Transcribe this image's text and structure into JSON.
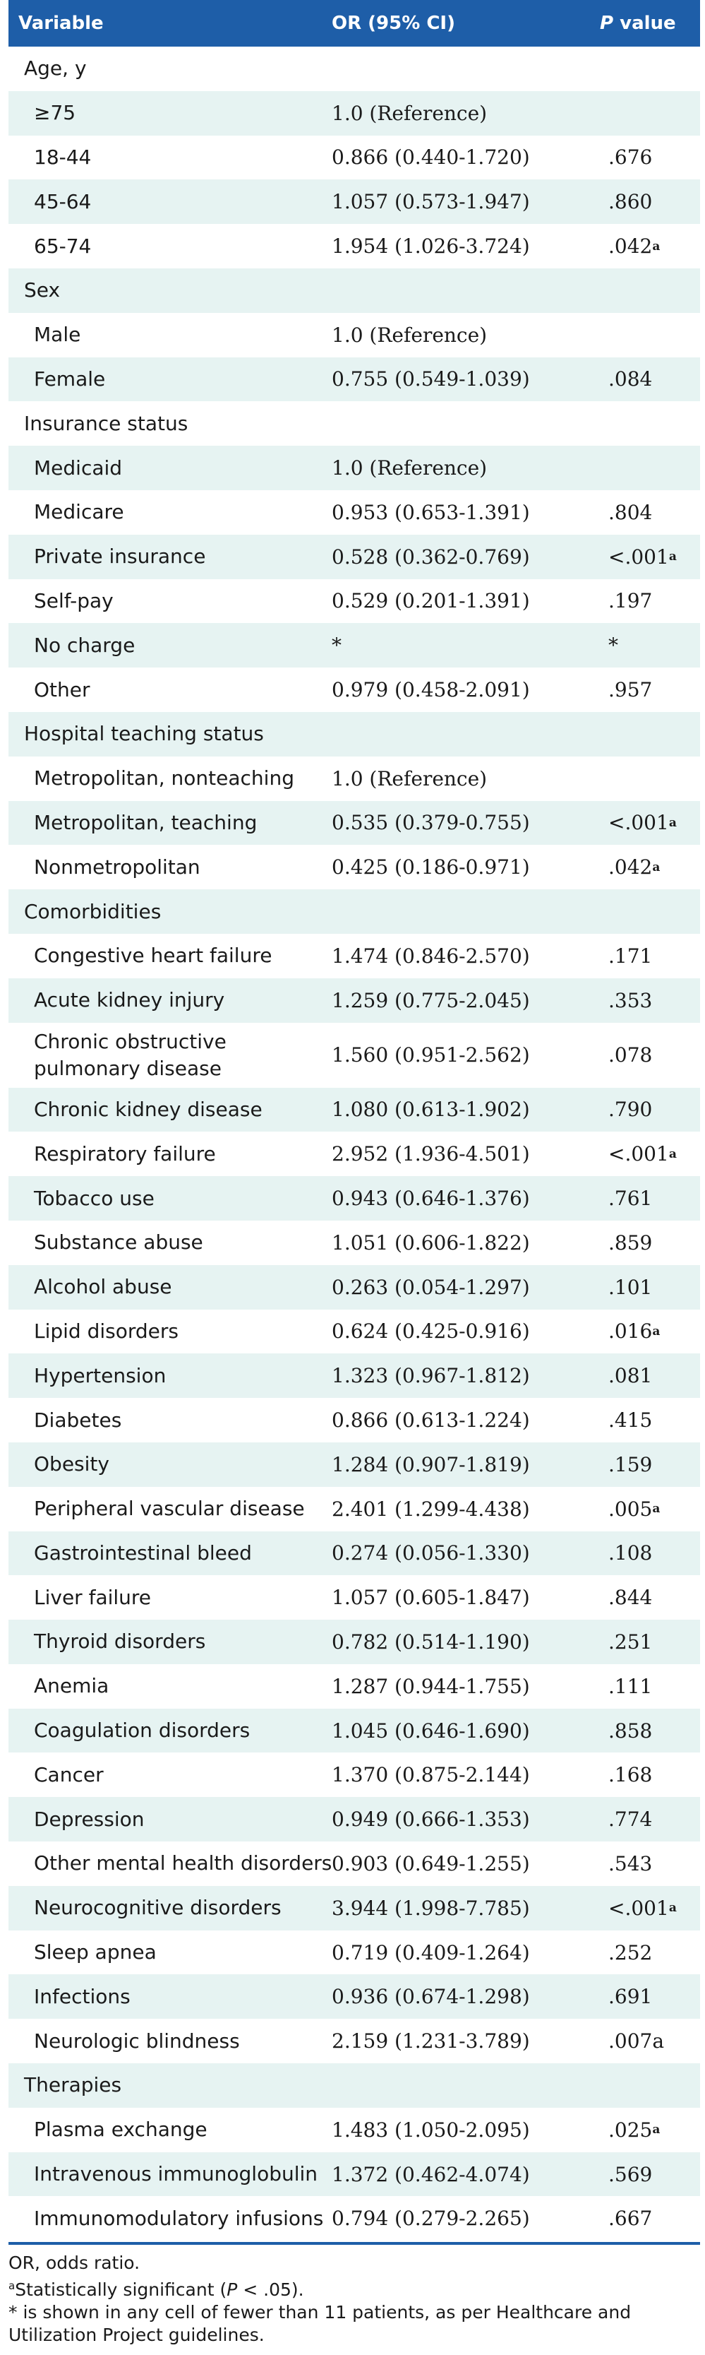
{
  "header": {
    "variable": "Variable",
    "or": "OR (95% CI)",
    "p_italic": "P",
    "p_rest": " value"
  },
  "rows": [
    {
      "label": "Age, y",
      "or": "",
      "p": "",
      "sup": "",
      "indent": false
    },
    {
      "label": "≥75",
      "or": "1.0 (Reference)",
      "p": "",
      "sup": "",
      "indent": true
    },
    {
      "label": "18-44",
      "or": "0.866 (0.440-1.720)",
      "p": ".676",
      "sup": "",
      "indent": true
    },
    {
      "label": "45-64",
      "or": "1.057 (0.573-1.947)",
      "p": ".860",
      "sup": "",
      "indent": true
    },
    {
      "label": "65-74",
      "or": "1.954 (1.026-3.724)",
      "p": ".042",
      "sup": "a",
      "indent": true
    },
    {
      "label": "Sex",
      "or": "",
      "p": "",
      "sup": "",
      "indent": false
    },
    {
      "label": "Male",
      "or": "1.0 (Reference)",
      "p": "",
      "sup": "",
      "indent": true
    },
    {
      "label": "Female",
      "or": "0.755 (0.549-1.039)",
      "p": ".084",
      "sup": "",
      "indent": true
    },
    {
      "label": "Insurance status",
      "or": "",
      "p": "",
      "sup": "",
      "indent": false
    },
    {
      "label": "Medicaid",
      "or": "1.0 (Reference)",
      "p": "",
      "sup": "",
      "indent": true
    },
    {
      "label": "Medicare",
      "or": "0.953 (0.653-1.391)",
      "p": ".804",
      "sup": "",
      "indent": true
    },
    {
      "label": "Private insurance",
      "or": "0.528 (0.362-0.769)",
      "p": "<.001",
      "sup": "a",
      "indent": true
    },
    {
      "label": "Self-pay",
      "or": "0.529 (0.201-1.391)",
      "p": ".197",
      "sup": "",
      "indent": true
    },
    {
      "label": "No charge",
      "or": "*",
      "p": "*",
      "sup": "",
      "indent": true
    },
    {
      "label": "Other",
      "or": "0.979 (0.458-2.091)",
      "p": ".957",
      "sup": "",
      "indent": true
    },
    {
      "label": "Hospital teaching status",
      "or": "",
      "p": "",
      "sup": "",
      "indent": false
    },
    {
      "label": "Metropolitan, nonteaching",
      "or": "1.0 (Reference)",
      "p": "",
      "sup": "",
      "indent": true
    },
    {
      "label": "Metropolitan, teaching",
      "or": "0.535 (0.379-0.755)",
      "p": "<.001",
      "sup": "a",
      "indent": true
    },
    {
      "label": "Nonmetropolitan",
      "or": "0.425 (0.186-0.971)",
      "p": ".042",
      "sup": "a",
      "indent": true
    },
    {
      "label": "Comorbidities",
      "or": "",
      "p": "",
      "sup": "",
      "indent": false
    },
    {
      "label": "Congestive heart failure",
      "or": "1.474 (0.846-2.570)",
      "p": ".171",
      "sup": "",
      "indent": true
    },
    {
      "label": "Acute kidney injury",
      "or": "1.259 (0.775-2.045)",
      "p": ".353",
      "sup": "",
      "indent": true
    },
    {
      "label": "Chronic obstructive pulmonary disease",
      "or": "1.560 (0.951-2.562)",
      "p": ".078",
      "sup": "",
      "indent": true,
      "tall": true
    },
    {
      "label": "Chronic kidney disease",
      "or": "1.080 (0.613-1.902)",
      "p": ".790",
      "sup": "",
      "indent": true
    },
    {
      "label": "Respiratory failure",
      "or": "2.952 (1.936-4.501)",
      "p": "<.001",
      "sup": "a",
      "indent": true
    },
    {
      "label": "Tobacco use",
      "or": "0.943 (0.646-1.376)",
      "p": ".761",
      "sup": "",
      "indent": true
    },
    {
      "label": "Substance abuse",
      "or": "1.051 (0.606-1.822)",
      "p": ".859",
      "sup": "",
      "indent": true
    },
    {
      "label": "Alcohol abuse",
      "or": "0.263 (0.054-1.297)",
      "p": ".101",
      "sup": "",
      "indent": true
    },
    {
      "label": "Lipid disorders",
      "or": "0.624 (0.425-0.916)",
      "p": ".016",
      "sup": "a",
      "indent": true
    },
    {
      "label": "Hypertension",
      "or": "1.323 (0.967-1.812)",
      "p": ".081",
      "sup": "",
      "indent": true
    },
    {
      "label": "Diabetes",
      "or": "0.866 (0.613-1.224)",
      "p": ".415",
      "sup": "",
      "indent": true
    },
    {
      "label": "Obesity",
      "or": "1.284 (0.907-1.819)",
      "p": ".159",
      "sup": "",
      "indent": true
    },
    {
      "label": "Peripheral vascular disease",
      "or": "2.401 (1.299-4.438)",
      "p": ".005",
      "sup": "a",
      "indent": true
    },
    {
      "label": "Gastrointestinal bleed",
      "or": "0.274 (0.056-1.330)",
      "p": ".108",
      "sup": "",
      "indent": true
    },
    {
      "label": "Liver failure",
      "or": "1.057 (0.605-1.847)",
      "p": ".844",
      "sup": "",
      "indent": true
    },
    {
      "label": "Thyroid disorders",
      "or": "0.782 (0.514-1.190)",
      "p": ".251",
      "sup": "",
      "indent": true
    },
    {
      "label": "Anemia",
      "or": "1.287 (0.944-1.755)",
      "p": ".111",
      "sup": "",
      "indent": true
    },
    {
      "label": "Coagulation disorders",
      "or": "1.045 (0.646-1.690)",
      "p": ".858",
      "sup": "",
      "indent": true
    },
    {
      "label": "Cancer",
      "or": "1.370 (0.875-2.144)",
      "p": ".168",
      "sup": "",
      "indent": true
    },
    {
      "label": "Depression",
      "or": "0.949 (0.666-1.353)",
      "p": ".774",
      "sup": "",
      "indent": true
    },
    {
      "label": "Other mental health disorders",
      "or": "0.903 (0.649-1.255)",
      "p": ".543",
      "sup": "",
      "indent": true
    },
    {
      "label": "Neurocognitive disorders",
      "or": "3.944 (1.998-7.785)",
      "p": "<.001",
      "sup": "a",
      "indent": true
    },
    {
      "label": "Sleep apnea",
      "or": "0.719 (0.409-1.264)",
      "p": ".252",
      "sup": "",
      "indent": true
    },
    {
      "label": "Infections",
      "or": "0.936 (0.674-1.298)",
      "p": ".691",
      "sup": "",
      "indent": true
    },
    {
      "label": "Neurologic blindness",
      "or": "2.159 (1.231-3.789)",
      "p": ".007a",
      "sup": "",
      "indent": true
    },
    {
      "label": "Therapies",
      "or": "",
      "p": "",
      "sup": "",
      "indent": false
    },
    {
      "label": "Plasma exchange",
      "or": "1.483 (1.050-2.095)",
      "p": ".025",
      "sup": "a",
      "indent": true
    },
    {
      "label": "Intravenous immunoglobulin",
      "or": "1.372 (0.462-4.074)",
      "p": ".569",
      "sup": "",
      "indent": true
    },
    {
      "label": "Immunomodulatory infusions",
      "or": "0.794 (0.279-2.265)",
      "p": ".667",
      "sup": "",
      "indent": true
    }
  ],
  "notes": {
    "abbrev": "OR, odds ratio.",
    "sig_sup": "a",
    "sig_text1": "Statistically significant (",
    "sig_italic": "P",
    "sig_text2": " < .05).",
    "star": "* is shown in any cell of fewer than 11 patients, as per Healthcare and Utilization Project guidelines."
  },
  "colors": {
    "header_bg": "#1e5ea8",
    "stripe": "#e6f3f2",
    "text": "#1a1a1a"
  }
}
